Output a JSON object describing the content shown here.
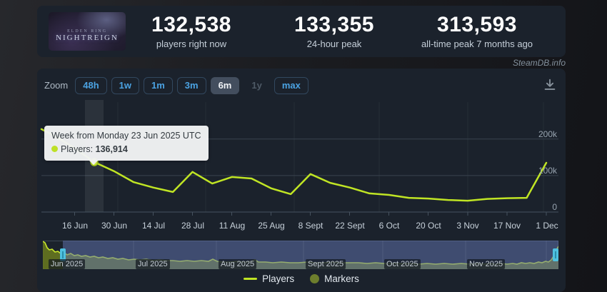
{
  "app": {
    "watermark": "SteamDB.info"
  },
  "header": {
    "banner": {
      "game_line1": "ELDEN RING",
      "game_line2": "NIGHTREIGN"
    },
    "stats": [
      {
        "value": "132,538",
        "label": "players right now"
      },
      {
        "value": "133,355",
        "label": "24-hour peak"
      },
      {
        "value": "313,593",
        "label": "all-time peak 7 months ago"
      }
    ]
  },
  "toolbar": {
    "zoom_label": "Zoom",
    "buttons": [
      {
        "label": "48h"
      },
      {
        "label": "1w"
      },
      {
        "label": "1m"
      },
      {
        "label": "3m"
      },
      {
        "label": "6m"
      },
      {
        "label": "1y"
      },
      {
        "label": "max"
      }
    ],
    "selected_button": "6m",
    "disabled_button": "1y"
  },
  "tooltip": {
    "title": "Week from Monday 23 Jun 2025 UTC",
    "series_label": "Players:",
    "value": "136,914"
  },
  "chart_data": {
    "type": "line",
    "title": "",
    "xlabel": "",
    "ylabel": "",
    "legend_position": "bottom",
    "grid": true,
    "ylim": [
      0,
      230000
    ],
    "y_ticks": [
      "200k",
      "100k",
      "0"
    ],
    "x_ticks": [
      "16 Jun",
      "30 Jun",
      "14 Jul",
      "28 Jul",
      "11 Aug",
      "25 Aug",
      "8 Sept",
      "22 Sept",
      "6 Oct",
      "20 Oct",
      "3 Nov",
      "17 Nov",
      "1 Dec"
    ],
    "series": [
      {
        "name": "Players",
        "color": "#c0e524",
        "x": [
          "2 Jun",
          "9 Jun",
          "16 Jun",
          "23 Jun",
          "30 Jun",
          "7 Jul",
          "14 Jul",
          "21 Jul",
          "28 Jul",
          "4 Aug",
          "11 Aug",
          "18 Aug",
          "25 Aug",
          "1 Sept",
          "8 Sept",
          "15 Sept",
          "22 Sept",
          "29 Sept",
          "6 Oct",
          "13 Oct",
          "20 Oct",
          "27 Oct",
          "3 Nov",
          "10 Nov",
          "17 Nov",
          "24 Nov",
          "1 Dec"
        ],
        "values": [
          227000,
          208000,
          175000,
          136914,
          112000,
          82000,
          67000,
          55000,
          110000,
          78000,
          96000,
          92000,
          65000,
          49000,
          104000,
          80000,
          67000,
          51000,
          47000,
          39000,
          37000,
          33000,
          31000,
          36000,
          38000,
          39000,
          135000
        ]
      }
    ],
    "highlighted_index": 3,
    "highlighted_point": {
      "x": "23 Jun 2025",
      "value": 136914
    }
  },
  "navigator": {
    "months": [
      "Jun 2025",
      "Jul 2025",
      "Aug 2025",
      "Sept 2025",
      "Oct 2025",
      "Nov 2025"
    ]
  },
  "legend": [
    {
      "label": "Players",
      "swatch": "line",
      "color": "#c0e524"
    },
    {
      "label": "Markers",
      "swatch": "circle",
      "color": "#6d7e2d"
    }
  ],
  "colors": {
    "panel": "#1b222c",
    "accent_blue": "#4ba3e3",
    "series_green": "#c0e524",
    "marker_olive": "#6d7e2d",
    "navigator_mask": "rgba(99,118,180,0.5)",
    "navigator_handle": "#4fc1e0"
  }
}
